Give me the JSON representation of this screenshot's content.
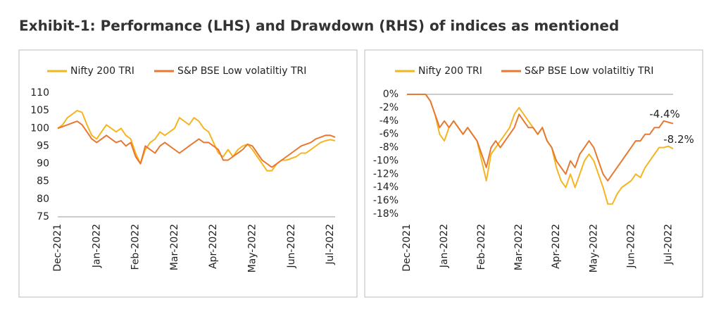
{
  "title": "Exhibit-1: Performance (LHS) and Drawdown (RHS) of indices as mentioned",
  "chart_data": [
    {
      "type": "line",
      "categories": [
        "Dec-2021",
        null,
        null,
        null,
        null,
        null,
        null,
        null,
        "Jan-2022",
        null,
        null,
        null,
        null,
        null,
        null,
        null,
        "Feb-2022",
        null,
        null,
        null,
        null,
        null,
        null,
        null,
        "Mar-2022",
        null,
        null,
        null,
        null,
        null,
        null,
        null,
        "Apr-2022",
        null,
        null,
        null,
        null,
        null,
        null,
        null,
        "May-2022",
        null,
        null,
        null,
        null,
        null,
        null,
        null,
        "Jun-2022",
        null,
        null,
        null,
        null,
        null,
        null,
        null,
        "Jul-2022",
        null
      ],
      "series": [
        {
          "name": "Nifty 200 TRI",
          "color": "#f5b520",
          "values": [
            100,
            101,
            103,
            104,
            105,
            104.5,
            101,
            98,
            97,
            99,
            101,
            100,
            99,
            100,
            98,
            97,
            93,
            90,
            94,
            96,
            97,
            99,
            98,
            99,
            100,
            103,
            102,
            101,
            103,
            102,
            100,
            99,
            96,
            93,
            92,
            94,
            92,
            94,
            95,
            95.5,
            94,
            92,
            90,
            88,
            88,
            90,
            91,
            91,
            91.5,
            92,
            93,
            93,
            94,
            95,
            96,
            96.5,
            96.8,
            96.5
          ]
        },
        {
          "name": "S&P BSE Low volatiltiy TRI",
          "color": "#e8782f",
          "values": [
            100,
            100.5,
            101,
            101.5,
            102,
            101,
            99,
            97,
            96,
            97,
            98,
            97,
            96,
            96.5,
            95,
            96,
            92,
            90,
            95,
            94,
            93,
            95,
            96,
            95,
            94,
            93,
            94,
            95,
            96,
            97,
            96,
            96,
            95,
            94,
            91,
            91,
            92,
            93,
            94,
            95.5,
            95,
            93,
            91,
            90,
            89,
            90,
            91,
            92,
            93,
            94,
            95,
            95.5,
            96,
            97,
            97.5,
            98,
            98,
            97.5
          ]
        }
      ],
      "ylim": [
        75,
        110
      ],
      "yticks": [
        75,
        80,
        85,
        90,
        95,
        100,
        105,
        110
      ],
      "legend": "top"
    },
    {
      "type": "line",
      "categories": [
        "Dec-2021",
        null,
        null,
        null,
        null,
        null,
        null,
        null,
        "Jan-2022",
        null,
        null,
        null,
        null,
        null,
        null,
        null,
        "Feb-2022",
        null,
        null,
        null,
        null,
        null,
        null,
        null,
        "Mar-2022",
        null,
        null,
        null,
        null,
        null,
        null,
        null,
        "Apr-2022",
        null,
        null,
        null,
        null,
        null,
        null,
        null,
        "May-2022",
        null,
        null,
        null,
        null,
        null,
        null,
        null,
        "Jun-2022",
        null,
        null,
        null,
        null,
        null,
        null,
        null,
        "Jul-2022",
        null
      ],
      "series": [
        {
          "name": "Nifty 200 TRI",
          "color": "#f5b520",
          "values": [
            0,
            0,
            0,
            0,
            0,
            -1,
            -3,
            -6,
            -7,
            -5,
            -4,
            -5,
            -6,
            -5,
            -6,
            -7,
            -10,
            -13,
            -9,
            -8,
            -7,
            -6,
            -5,
            -3,
            -2,
            -3,
            -4,
            -5,
            -6,
            -5,
            -7,
            -8,
            -11,
            -13,
            -14,
            -12,
            -14,
            -12,
            -10,
            -9,
            -10,
            -12,
            -14,
            -16.5,
            -16.5,
            -15,
            -14,
            -13.5,
            -13,
            -12,
            -12.5,
            -11,
            -10,
            -9,
            -8,
            -8,
            -7.8,
            -8.2
          ],
          "value_labels": [
            null,
            null,
            null,
            null,
            null,
            null,
            null,
            null,
            null,
            null,
            null,
            null,
            null,
            null,
            null,
            null,
            null,
            null,
            null,
            null,
            null,
            null,
            null,
            null,
            null,
            null,
            null,
            null,
            null,
            null,
            null,
            null,
            null,
            null,
            null,
            null,
            null,
            null,
            null,
            null,
            null,
            null,
            null,
            null,
            null,
            null,
            null,
            null,
            null,
            null,
            null,
            null,
            null,
            null,
            null,
            null,
            null,
            "-8.2%"
          ]
        },
        {
          "name": "S&P BSE Low volatiltiy TRI",
          "color": "#e8782f",
          "values": [
            0,
            0,
            0,
            0,
            0,
            -1,
            -3,
            -5,
            -4,
            -5,
            -4,
            -5,
            -6,
            -5,
            -6,
            -7,
            -9,
            -11,
            -8,
            -7,
            -8,
            -7,
            -6,
            -5,
            -3,
            -4,
            -5,
            -5,
            -6,
            -5,
            -7,
            -8,
            -10,
            -11,
            -12,
            -10,
            -11,
            -9,
            -8,
            -7,
            -8,
            -10,
            -12,
            -13,
            -12,
            -11,
            -10,
            -9,
            -8,
            -7,
            -7,
            -6,
            -6,
            -5,
            -5,
            -4,
            -4.2,
            -4.4
          ],
          "value_labels": [
            null,
            null,
            null,
            null,
            null,
            null,
            null,
            null,
            null,
            null,
            null,
            null,
            null,
            null,
            null,
            null,
            null,
            null,
            null,
            null,
            null,
            null,
            null,
            null,
            null,
            null,
            null,
            null,
            null,
            null,
            null,
            null,
            null,
            null,
            null,
            null,
            null,
            null,
            null,
            null,
            null,
            null,
            null,
            null,
            null,
            null,
            null,
            null,
            null,
            null,
            null,
            null,
            null,
            null,
            null,
            null,
            null,
            "-4.4%"
          ]
        }
      ],
      "ylim": [
        -18,
        0
      ],
      "yticks": [
        {
          "value": 0,
          "label": "0%"
        },
        {
          "value": -2,
          "label": "-2%"
        },
        {
          "value": -4,
          "label": "-4%"
        },
        {
          "value": -6,
          "label": "-6%"
        },
        {
          "value": -8,
          "label": "-8%"
        },
        {
          "value": -10,
          "label": "-10%"
        },
        {
          "value": -12,
          "label": "-12%"
        },
        {
          "value": -14,
          "label": "-14%"
        },
        {
          "value": -16,
          "label": "-16%"
        },
        {
          "value": -18,
          "label": "-18%"
        }
      ],
      "legend": "top"
    }
  ]
}
